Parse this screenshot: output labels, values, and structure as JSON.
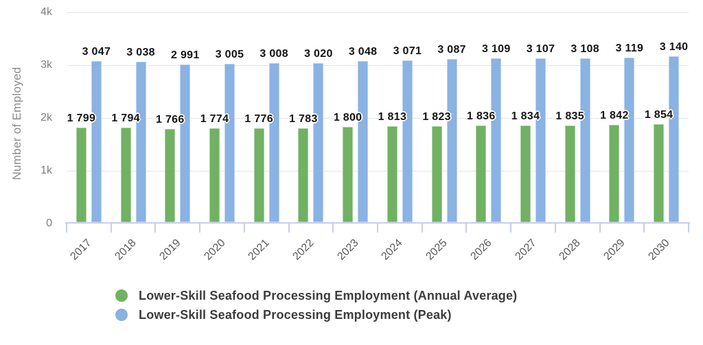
{
  "chart_data": {
    "type": "bar",
    "title": "",
    "ylabel": "Number of Employed",
    "categories": [
      "2017",
      "2018",
      "2019",
      "2020",
      "2021",
      "2022",
      "2023",
      "2024",
      "2025",
      "2026",
      "2027",
      "2028",
      "2029",
      "2030"
    ],
    "series": [
      {
        "name": "Lower-Skill Seafood Processing Employment (Annual Average)",
        "color": "#71b163",
        "border_color": "#a9d19e",
        "values": [
          1799,
          1794,
          1766,
          1774,
          1776,
          1783,
          1800,
          1813,
          1823,
          1836,
          1834,
          1835,
          1842,
          1854
        ]
      },
      {
        "name": "Lower-Skill Seafood Processing Employment (Peak)",
        "color": "#8ab2e3",
        "border_color": "#b9d2f0",
        "values": [
          3047,
          3038,
          2991,
          3005,
          3008,
          3020,
          3048,
          3071,
          3087,
          3109,
          3107,
          3108,
          3119,
          3140
        ]
      }
    ],
    "yticks": [
      "0",
      "1k",
      "2k",
      "3k",
      "4k"
    ],
    "ylim": [
      0,
      4000
    ],
    "grid": true,
    "legend_position": "bottom",
    "value_label_thousands_separator": " ",
    "colors": {
      "background": "#ffffff",
      "axis_line": "#c7cdec",
      "gridline": "#e4e4e4",
      "tick_label": "#7f7f7f",
      "x_label": "#5a5a5a",
      "data_label": "#141414",
      "legend_text": "#3c3c3c",
      "axis_title": "#8a8a8a"
    }
  }
}
